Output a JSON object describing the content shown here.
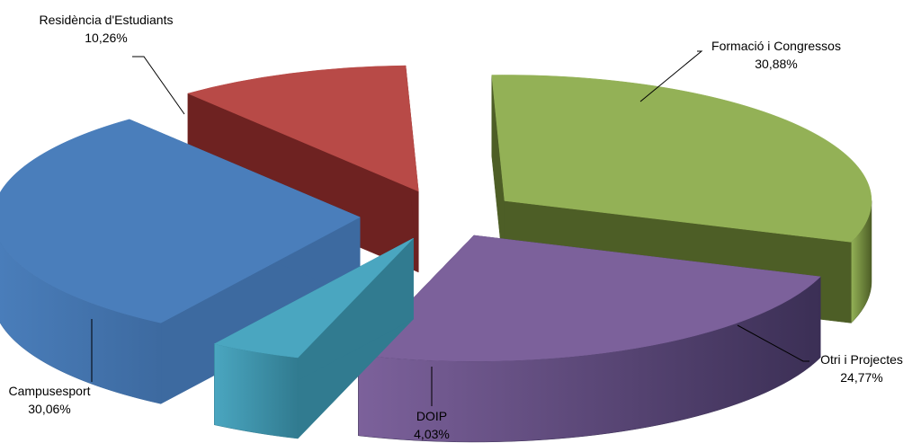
{
  "chart_data": {
    "type": "pie",
    "style": "3d-exploded",
    "title": "",
    "categories": [
      "Formació i Congressos",
      "Otri i Projectes",
      "DOIP",
      "Campusesport",
      "Residència d'Estudiants"
    ],
    "values": [
      30.88,
      24.77,
      4.03,
      30.06,
      10.26
    ],
    "value_labels": [
      "30,88%",
      "24,77%",
      "4,03%",
      "30,06%",
      "10,26%"
    ],
    "colors": {
      "top": [
        "#93b156",
        "#7c619b",
        "#4aa6c0",
        "#4a7ebb",
        "#b84a47"
      ],
      "side": [
        "#4d5e26",
        "#3b2f55",
        "#317b90",
        "#3d6aa0",
        "#6e2221"
      ]
    },
    "legend": "none"
  }
}
